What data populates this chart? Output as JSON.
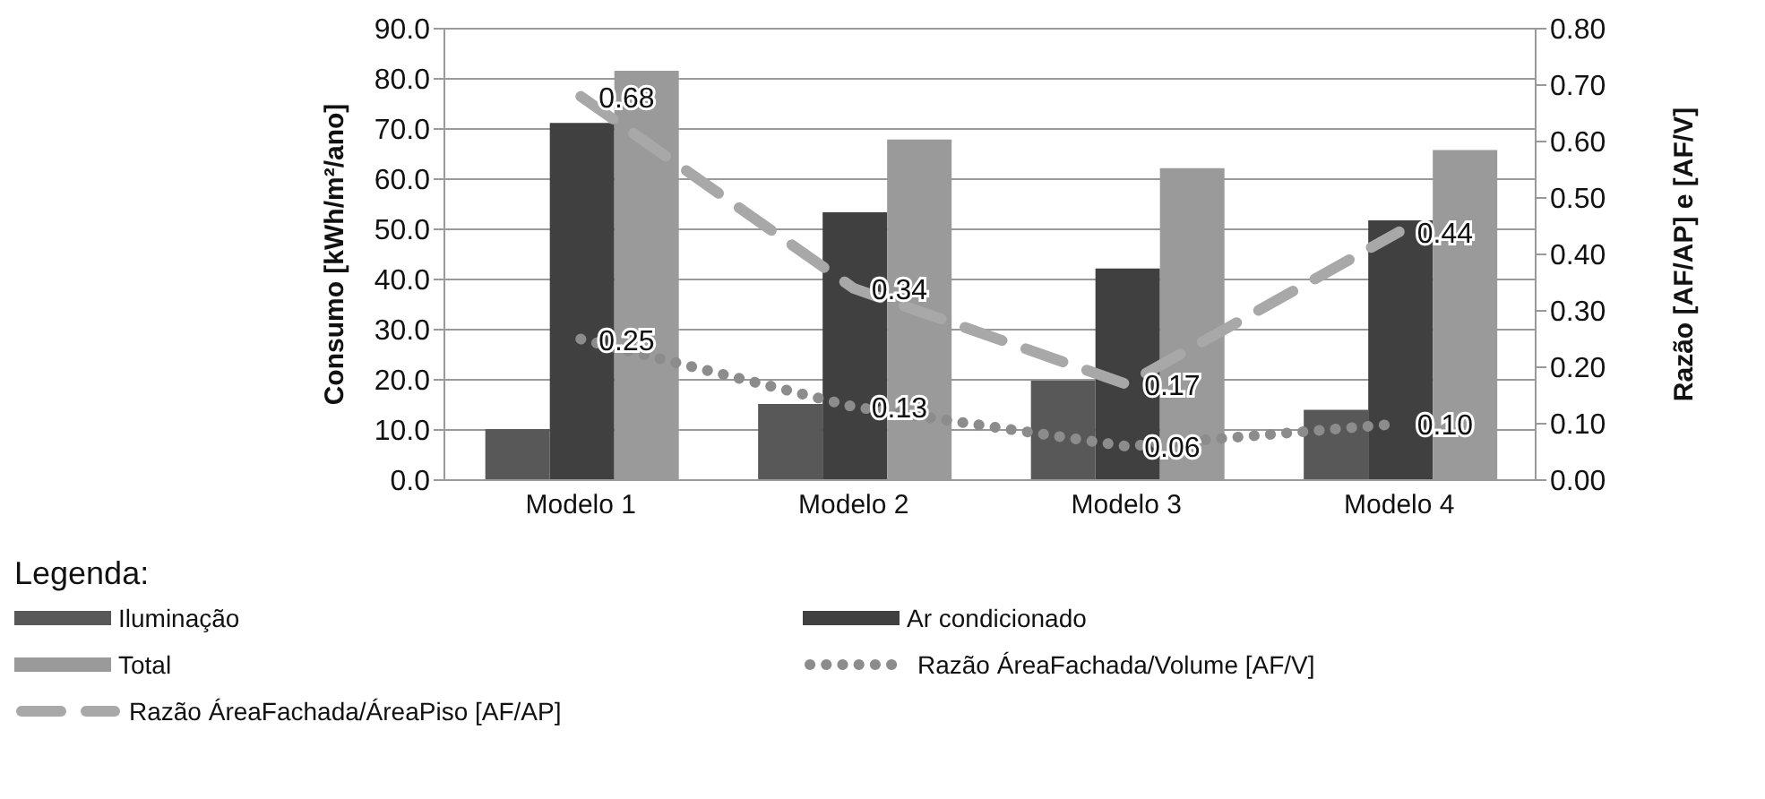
{
  "chart_data": {
    "type": "bar",
    "categories": [
      "Modelo 1",
      "Modelo 2",
      "Modelo 3",
      "Modelo 4"
    ],
    "ylabel": "Consumo [kWh/m²/ano]",
    "y2label": "Razão [AF/AP] e [AF/V]",
    "legend_title": "Legenda:",
    "legend": "bottom",
    "grid": "y",
    "ylim": [
      0,
      90
    ],
    "yticks": [
      {
        "value": 0,
        "label": "0.0"
      },
      {
        "value": 10,
        "label": "10.0"
      },
      {
        "value": 20,
        "label": "20.0"
      },
      {
        "value": 30,
        "label": "30.0"
      },
      {
        "value": 40,
        "label": "40.0"
      },
      {
        "value": 50,
        "label": "50.0"
      },
      {
        "value": 60,
        "label": "60.0"
      },
      {
        "value": 70,
        "label": "70.0"
      },
      {
        "value": 80,
        "label": "80.0"
      },
      {
        "value": 90,
        "label": "90.0"
      }
    ],
    "y2lim": [
      0,
      0.8
    ],
    "y2ticks": [
      {
        "value": 0,
        "label": "0.00"
      },
      {
        "value": 0.1,
        "label": "0.10"
      },
      {
        "value": 0.2,
        "label": "0.20"
      },
      {
        "value": 0.3,
        "label": "0.30"
      },
      {
        "value": 0.4,
        "label": "0.40"
      },
      {
        "value": 0.5,
        "label": "0.50"
      },
      {
        "value": 0.6,
        "label": "0.60"
      },
      {
        "value": 0.7,
        "label": "0.70"
      },
      {
        "value": 0.8,
        "label": "0.80"
      }
    ],
    "series": [
      {
        "name": "Iluminação",
        "type": "bar",
        "color": "#585858",
        "values": [
          10.2,
          15.2,
          19.8,
          14.0
        ]
      },
      {
        "name": "Ar condicionado",
        "type": "bar",
        "color": "#404040",
        "values": [
          71.2,
          53.4,
          42.2,
          51.8
        ]
      },
      {
        "name": "Total",
        "type": "bar",
        "color": "#9a9a9a",
        "values": [
          81.6,
          67.9,
          62.2,
          65.8
        ]
      },
      {
        "name": "Razão ÁreaFachada/Volume [AF/V]",
        "type": "line",
        "axis": "y2",
        "line_style": "dotted",
        "color": "#8c8c8c",
        "values": [
          0.25,
          0.13,
          0.06,
          0.1
        ],
        "value_labels": [
          "0.25",
          "0.13",
          "0.06",
          "0.10"
        ]
      },
      {
        "name": "Razão ÁreaFachada/ÁreaPiso [AF/AP]",
        "type": "line",
        "axis": "y2",
        "line_style": "dashed",
        "color": "#a8a8a8",
        "values": [
          0.68,
          0.34,
          0.17,
          0.44
        ],
        "value_labels": [
          "0.68",
          "0.34",
          "0.17",
          "0.44"
        ]
      }
    ]
  }
}
